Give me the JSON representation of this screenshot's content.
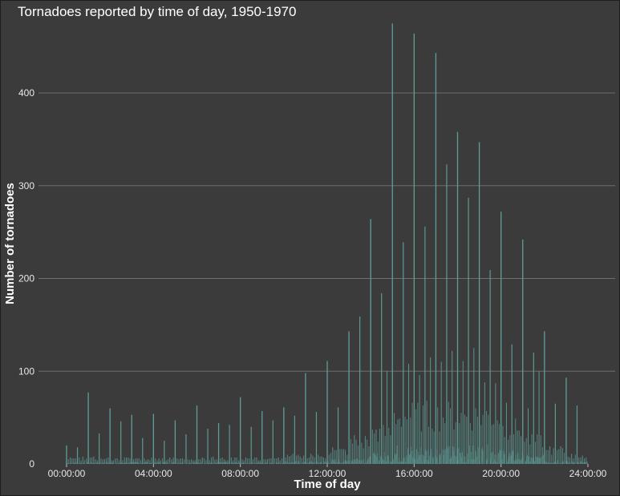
{
  "chart_data": {
    "type": "bar",
    "title": "Tornadoes reported by time of day, 1950-1970",
    "xlabel": "Time of day",
    "ylabel": "Number of tornadoes",
    "xlim": [
      "00:00:00",
      "24:00:00"
    ],
    "ylim": [
      0,
      480
    ],
    "x_ticks": [
      "00:00:00",
      "04:00:00",
      "08:00:00",
      "12:00:00",
      "16:00:00",
      "20:00:00",
      "24:00:00"
    ],
    "y_ticks": [
      0,
      100,
      200,
      300,
      400
    ],
    "grid": true,
    "bar_color": "#5f9e98",
    "hourly_peaks": [
      {
        "time": "00:00:00",
        "value": 20
      },
      {
        "time": "01:00:00",
        "value": 77
      },
      {
        "time": "02:00:00",
        "value": 60
      },
      {
        "time": "03:00:00",
        "value": 53
      },
      {
        "time": "04:00:00",
        "value": 54
      },
      {
        "time": "05:00:00",
        "value": 47
      },
      {
        "time": "06:00:00",
        "value": 63
      },
      {
        "time": "07:00:00",
        "value": 44
      },
      {
        "time": "08:00:00",
        "value": 72
      },
      {
        "time": "09:00:00",
        "value": 57
      },
      {
        "time": "10:00:00",
        "value": 61
      },
      {
        "time": "11:00:00",
        "value": 98
      },
      {
        "time": "12:00:00",
        "value": 111
      },
      {
        "time": "13:00:00",
        "value": 143
      },
      {
        "time": "14:00:00",
        "value": 264
      },
      {
        "time": "15:00:00",
        "value": 475
      },
      {
        "time": "16:00:00",
        "value": 464
      },
      {
        "time": "17:00:00",
        "value": 443
      },
      {
        "time": "18:00:00",
        "value": 358
      },
      {
        "time": "19:00:00",
        "value": 347
      },
      {
        "time": "20:00:00",
        "value": 272
      },
      {
        "time": "21:00:00",
        "value": 242
      },
      {
        "time": "22:00:00",
        "value": 143
      },
      {
        "time": "23:00:00",
        "value": 93
      }
    ],
    "half_hour_peaks": [
      {
        "time": "00:30:00",
        "value": 18
      },
      {
        "time": "01:30:00",
        "value": 33
      },
      {
        "time": "02:30:00",
        "value": 46
      },
      {
        "time": "03:30:00",
        "value": 28
      },
      {
        "time": "04:30:00",
        "value": 25
      },
      {
        "time": "05:30:00",
        "value": 32
      },
      {
        "time": "06:30:00",
        "value": 38
      },
      {
        "time": "07:30:00",
        "value": 42
      },
      {
        "time": "08:30:00",
        "value": 40
      },
      {
        "time": "09:30:00",
        "value": 47
      },
      {
        "time": "10:30:00",
        "value": 52
      },
      {
        "time": "11:30:00",
        "value": 56
      },
      {
        "time": "12:30:00",
        "value": 61
      },
      {
        "time": "13:30:00",
        "value": 159
      },
      {
        "time": "14:30:00",
        "value": 184
      },
      {
        "time": "15:30:00",
        "value": 239
      },
      {
        "time": "16:30:00",
        "value": 256
      },
      {
        "time": "17:30:00",
        "value": 323
      },
      {
        "time": "18:30:00",
        "value": 287
      },
      {
        "time": "19:30:00",
        "value": 209
      },
      {
        "time": "20:30:00",
        "value": 129
      },
      {
        "time": "21:30:00",
        "value": 120
      },
      {
        "time": "22:30:00",
        "value": 65
      },
      {
        "time": "23:30:00",
        "value": 63
      }
    ],
    "quarter_hour_peaks": [
      {
        "time": "14:45:00",
        "value": 100
      },
      {
        "time": "15:45:00",
        "value": 108
      },
      {
        "time": "16:15:00",
        "value": 96
      },
      {
        "time": "16:45:00",
        "value": 115
      },
      {
        "time": "17:15:00",
        "value": 110
      },
      {
        "time": "17:45:00",
        "value": 122
      },
      {
        "time": "18:15:00",
        "value": 111
      },
      {
        "time": "18:45:00",
        "value": 125
      },
      {
        "time": "19:15:00",
        "value": 88
      },
      {
        "time": "19:45:00",
        "value": 87
      },
      {
        "time": "20:15:00",
        "value": 66
      },
      {
        "time": "21:15:00",
        "value": 60
      },
      {
        "time": "21:45:00",
        "value": 100
      }
    ]
  }
}
